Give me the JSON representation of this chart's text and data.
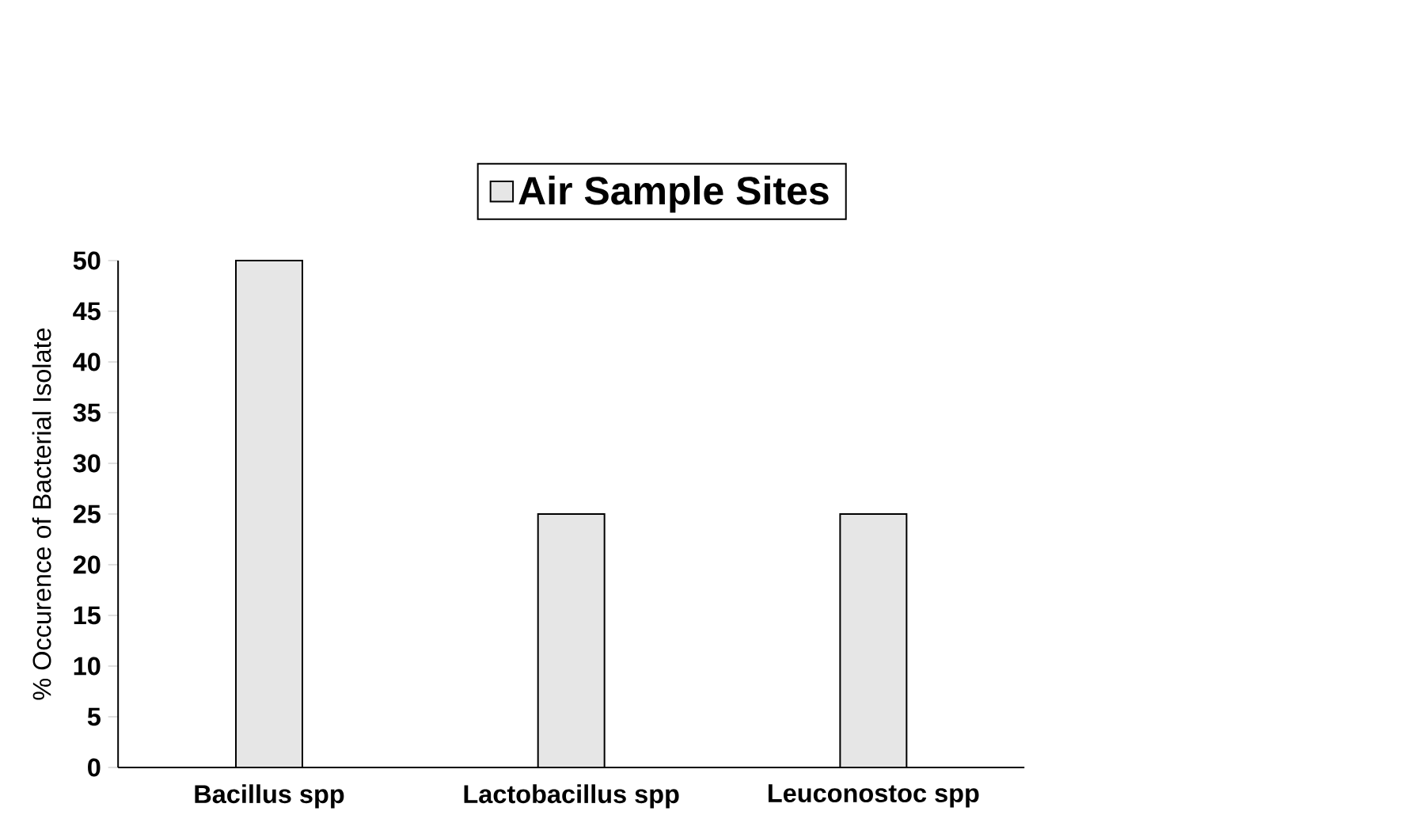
{
  "chart_data": {
    "type": "bar",
    "ylabel": "% Occurence of Bacterial Isolate",
    "categories": [
      "Bacillus spp",
      "Lactobacillus spp",
      "Leuconostoc spp"
    ],
    "series": [
      {
        "name": "Air Sample Sites",
        "color": "#e6e6e6",
        "values": [
          50,
          25,
          25
        ]
      }
    ],
    "ylim": [
      0,
      50
    ],
    "yticks": [
      0,
      5,
      10,
      15,
      20,
      25,
      30,
      35,
      40,
      45,
      50
    ],
    "legend": "top"
  }
}
